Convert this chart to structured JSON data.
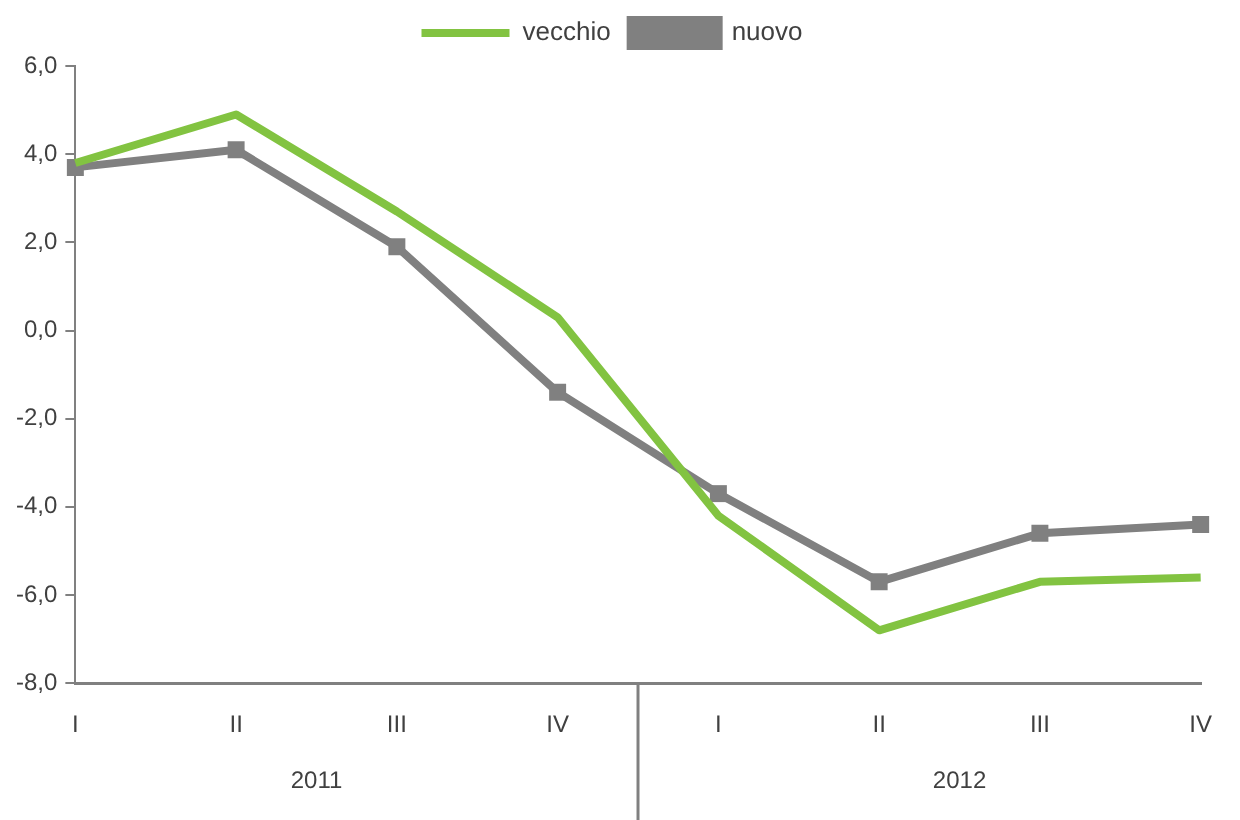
{
  "chart_data": {
    "type": "line",
    "categories": [
      "I",
      "II",
      "III",
      "IV",
      "I",
      "II",
      "III",
      "IV"
    ],
    "series": [
      {
        "name": "vecchio",
        "color": "#82c341",
        "marker": "none",
        "values": [
          3.8,
          4.9,
          2.7,
          0.3,
          -4.2,
          -6.8,
          -5.7,
          -5.6
        ]
      },
      {
        "name": "nuovo",
        "color": "#808080",
        "marker": "square",
        "values": [
          3.7,
          4.1,
          1.9,
          -1.4,
          -3.7,
          -5.7,
          -4.6,
          -4.4
        ]
      }
    ],
    "ylim": [
      -8,
      6
    ],
    "yticks": [
      {
        "value": -8,
        "label": "-8,0"
      },
      {
        "value": -6,
        "label": "-6,0"
      },
      {
        "value": -4,
        "label": "-4,0"
      },
      {
        "value": -2,
        "label": "-2,0"
      },
      {
        "value": 0,
        "label": "0,0"
      },
      {
        "value": 2,
        "label": "2,0"
      },
      {
        "value": 4,
        "label": "4,0"
      },
      {
        "value": 6,
        "label": "6,0"
      }
    ],
    "annotations": [
      "2011",
      "2012"
    ],
    "legend": "top",
    "grid": false
  }
}
